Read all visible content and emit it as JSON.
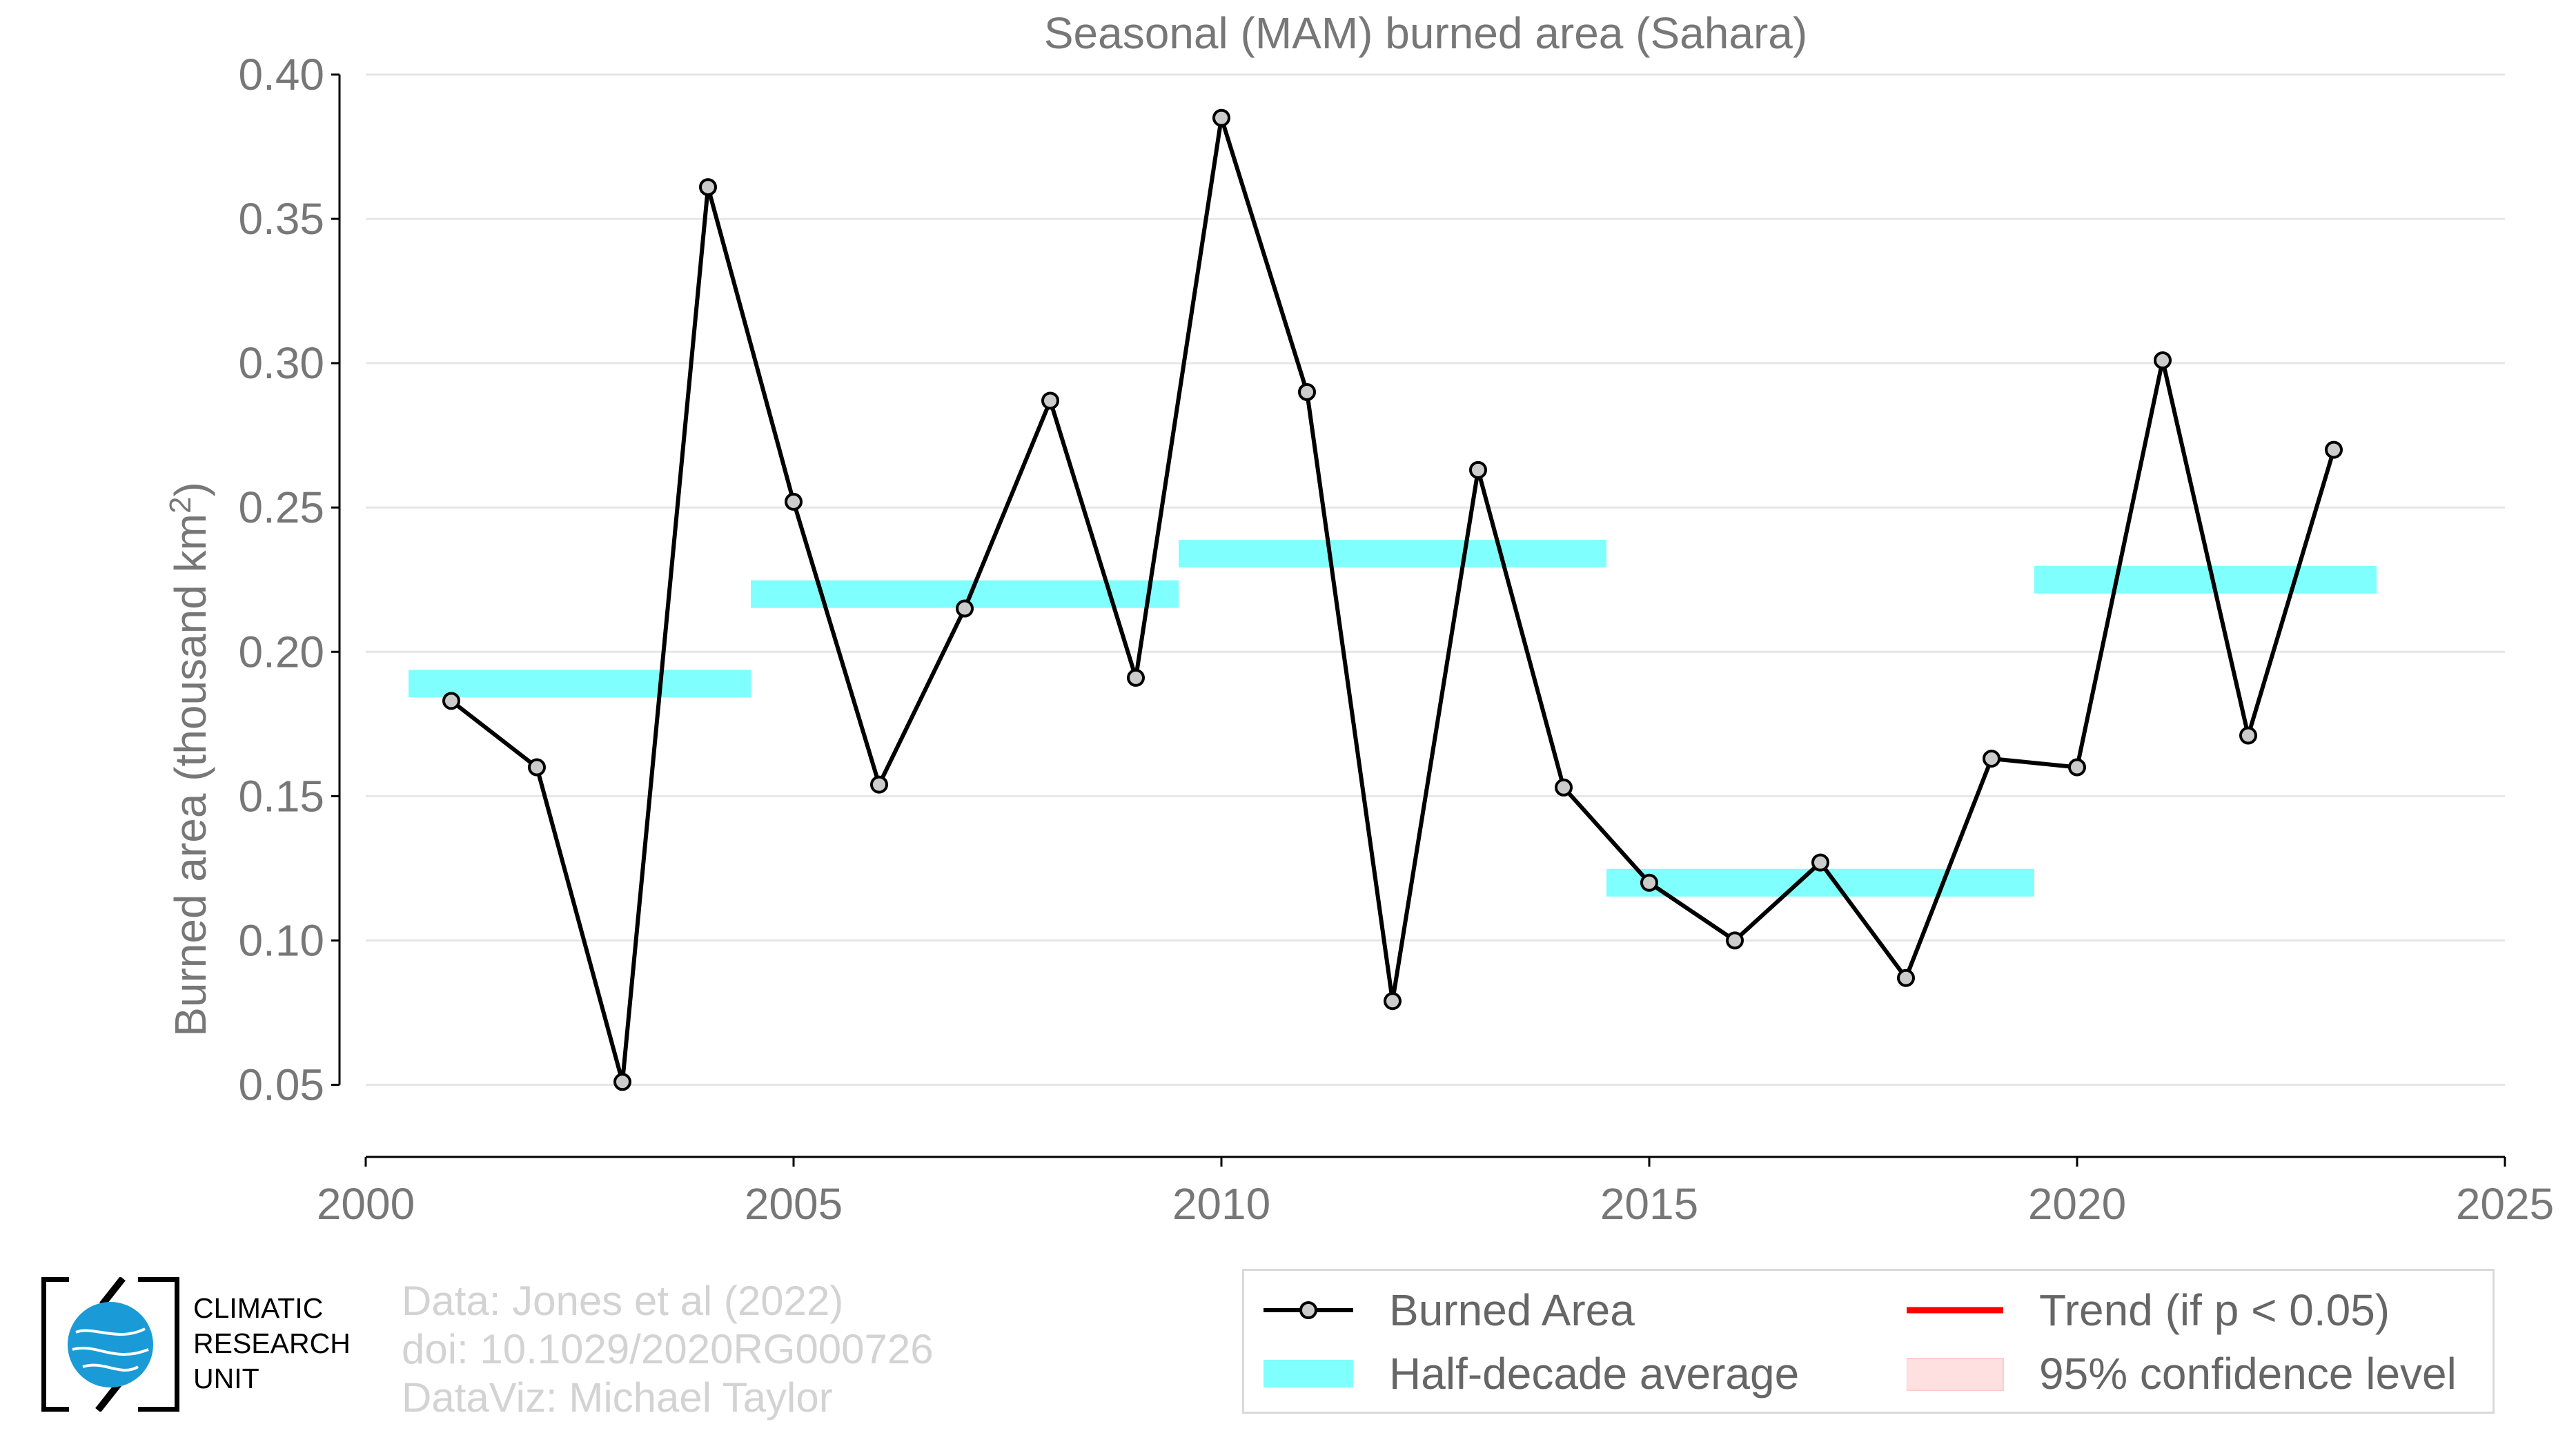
{
  "chart_data": {
    "type": "line",
    "title": "Seasonal (MAM) burned area (Sahara)",
    "ylabel": "Burned area (thousand km",
    "ylabel_sup": "2",
    "ylabel_end": ")",
    "xlim": [
      2000,
      2025
    ],
    "ylim": [
      0.025,
      0.4
    ],
    "xticks": [
      2000,
      2005,
      2010,
      2015,
      2020,
      2025
    ],
    "yticks": [
      0.05,
      0.1,
      0.15,
      0.2,
      0.25,
      0.3,
      0.35,
      0.4
    ],
    "ytick_labels": [
      "0.05",
      "0.10",
      "0.15",
      "0.20",
      "0.25",
      "0.30",
      "0.35",
      "0.40"
    ],
    "grid": "horizontal",
    "series": [
      {
        "name": "Burned Area",
        "color": "#000000",
        "marker_color": "#cccccc",
        "x": [
          2001,
          2002,
          2003,
          2004,
          2005,
          2006,
          2007,
          2008,
          2009,
          2010,
          2011,
          2012,
          2013,
          2014,
          2015,
          2016,
          2017,
          2018,
          2019,
          2020,
          2021,
          2022,
          2023
        ],
        "y": [
          0.183,
          0.16,
          0.051,
          0.361,
          0.252,
          0.154,
          0.215,
          0.287,
          0.191,
          0.385,
          0.29,
          0.079,
          0.263,
          0.153,
          0.12,
          0.1,
          0.127,
          0.087,
          0.163,
          0.16,
          0.301,
          0.171,
          0.27
        ]
      },
      {
        "name": "Half-decade average",
        "color": "#80ffff",
        "segments": [
          {
            "x0": 2000.5,
            "x1": 2004.5,
            "y": 0.189
          },
          {
            "x0": 2004.5,
            "x1": 2009.5,
            "y": 0.22
          },
          {
            "x0": 2009.5,
            "x1": 2014.5,
            "y": 0.234
          },
          {
            "x0": 2014.5,
            "x1": 2019.5,
            "y": 0.12
          },
          {
            "x0": 2019.5,
            "x1": 2023.5,
            "y": 0.225
          }
        ]
      }
    ],
    "legend": {
      "placement": "bottom-right",
      "entries": [
        {
          "label": "Burned Area",
          "kind": "line-marker",
          "color": "#000000"
        },
        {
          "label": "Trend (if p < 0.05)",
          "kind": "line",
          "color": "#ff0000"
        },
        {
          "label": "Half-decade average",
          "kind": "band",
          "color": "#80ffff"
        },
        {
          "label": "95% confidence level",
          "kind": "patch",
          "color": "#ffe0e0"
        }
      ]
    }
  },
  "credits": [
    "Data: Jones et al (2022)",
    "doi: 10.1029/2020RG000726",
    "DataViz: Michael Taylor"
  ],
  "logo": {
    "lines": [
      "CLIMATIC",
      "RESEARCH",
      "UNIT"
    ],
    "globe_color": "#1a9bd7"
  }
}
